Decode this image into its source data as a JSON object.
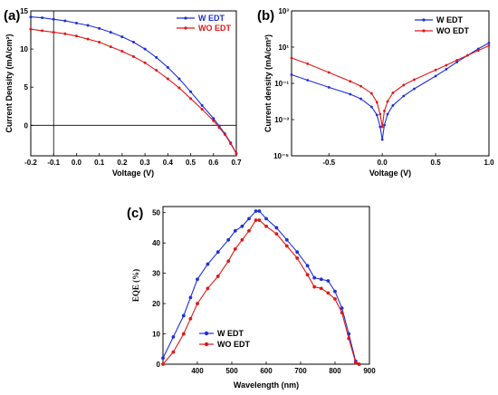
{
  "panel_labels": {
    "a": "(a)",
    "b": "(b)",
    "c": "(c)"
  },
  "colors": {
    "w_edt": "#1f2fd8",
    "wo_edt": "#e01818"
  },
  "chart_data": [
    {
      "id": "a",
      "type": "line",
      "xlabel": "Voltage (V)",
      "ylabel": "Current Density (mA/cm²)",
      "xlim": [
        -0.2,
        0.7
      ],
      "ylim": [
        -4,
        15
      ],
      "xticks": [
        -0.2,
        -0.1,
        0.0,
        0.1,
        0.2,
        0.3,
        0.4,
        0.5,
        0.6,
        0.7
      ],
      "xtick_labels": [
        "-0.2",
        "-0.1",
        "0.0",
        "0.1",
        "0.2",
        "0.3",
        "0.4",
        "0.5",
        "0.6",
        "0.7"
      ],
      "yticks": [
        0,
        5,
        10,
        15
      ],
      "ytick_labels": [
        "0",
        "5",
        "10",
        "15"
      ],
      "refline_x": -0.1,
      "refline_y": 0,
      "legend_position": "top-right",
      "series": [
        {
          "name": "W EDT",
          "color": "#1f2fd8",
          "x": [
            -0.2,
            -0.15,
            -0.1,
            -0.05,
            0.0,
            0.05,
            0.1,
            0.15,
            0.2,
            0.25,
            0.3,
            0.35,
            0.4,
            0.45,
            0.5,
            0.55,
            0.6,
            0.625,
            0.65,
            0.675,
            0.7
          ],
          "y": [
            14.2,
            14.1,
            13.9,
            13.7,
            13.4,
            13.1,
            12.7,
            12.2,
            11.6,
            10.9,
            10.0,
            8.9,
            7.6,
            6.1,
            4.4,
            2.6,
            0.9,
            -0.1,
            -1.1,
            -2.3,
            -3.7
          ]
        },
        {
          "name": "WO EDT",
          "color": "#e01818",
          "x": [
            -0.2,
            -0.15,
            -0.1,
            -0.05,
            0.0,
            0.05,
            0.1,
            0.15,
            0.2,
            0.25,
            0.3,
            0.35,
            0.4,
            0.45,
            0.5,
            0.55,
            0.6,
            0.625,
            0.65,
            0.675,
            0.7
          ],
          "y": [
            12.6,
            12.4,
            12.2,
            12.0,
            11.7,
            11.3,
            10.9,
            10.3,
            9.7,
            9.0,
            8.2,
            7.2,
            6.1,
            4.9,
            3.5,
            2.1,
            0.6,
            -0.3,
            -1.2,
            -2.4,
            -3.7
          ]
        }
      ]
    },
    {
      "id": "b",
      "type": "line",
      "yscale": "log",
      "xlabel": "Voltage (V)",
      "ylabel": "Current density (mA/cm²)",
      "xlim": [
        -0.85,
        1.0
      ],
      "ylim": [
        1e-05,
        1000.0
      ],
      "xticks": [
        -0.5,
        0.0,
        0.5,
        1.0
      ],
      "xtick_labels": [
        "-0.5",
        "0.0",
        "0.5",
        "1.0"
      ],
      "yticks": [
        1e-05,
        0.001,
        0.1,
        10.0,
        1000.0
      ],
      "ytick_labels": [
        "10⁻⁵",
        "10⁻³",
        "10⁻¹",
        "10¹",
        "10³"
      ],
      "legend_position": "top-right",
      "series": [
        {
          "name": "W EDT",
          "color": "#1f2fd8",
          "x": [
            -0.85,
            -0.7,
            -0.5,
            -0.3,
            -0.2,
            -0.1,
            -0.05,
            -0.02,
            0.0,
            0.02,
            0.05,
            0.1,
            0.2,
            0.3,
            0.5,
            0.6,
            0.7,
            0.8,
            0.9,
            1.0
          ],
          "y": [
            0.3,
            0.15,
            0.06,
            0.025,
            0.014,
            0.005,
            0.0018,
            0.0004,
            8e-05,
            0.0005,
            0.002,
            0.006,
            0.02,
            0.05,
            0.25,
            0.6,
            1.5,
            3.5,
            8.0,
            17.0
          ]
        },
        {
          "name": "WO EDT",
          "color": "#e01818",
          "x": [
            -0.85,
            -0.7,
            -0.5,
            -0.3,
            -0.2,
            -0.1,
            -0.05,
            -0.02,
            0.0,
            0.02,
            0.05,
            0.1,
            0.2,
            0.3,
            0.5,
            0.6,
            0.7,
            0.8,
            0.9,
            1.0
          ],
          "y": [
            2.5,
            1.2,
            0.4,
            0.13,
            0.07,
            0.028,
            0.009,
            0.002,
            0.0004,
            0.003,
            0.01,
            0.03,
            0.08,
            0.16,
            0.55,
            1.0,
            1.9,
            3.5,
            6.5,
            12.0
          ]
        }
      ]
    },
    {
      "id": "c",
      "type": "line",
      "xlabel": "Wavelength (nm)",
      "ylabel": "EQE (%)",
      "xlim": [
        300,
        900
      ],
      "ylim": [
        0,
        52
      ],
      "xticks": [
        400,
        500,
        600,
        700,
        800,
        900
      ],
      "xtick_labels": [
        "400",
        "500",
        "600",
        "700",
        "800",
        "900"
      ],
      "yticks": [
        0,
        10,
        20,
        30,
        40,
        50
      ],
      "ytick_labels": [
        "0",
        "10",
        "20",
        "30",
        "40",
        "50"
      ],
      "legend_position": "bottom-left",
      "series": [
        {
          "name": "W EDT",
          "color": "#1f2fd8",
          "x": [
            300,
            330,
            360,
            380,
            400,
            430,
            460,
            490,
            510,
            530,
            550,
            570,
            580,
            600,
            630,
            660,
            690,
            720,
            740,
            760,
            780,
            800,
            820,
            840,
            860,
            870
          ],
          "y": [
            2,
            9,
            16,
            22,
            28,
            33,
            37,
            41,
            44,
            45.5,
            48,
            50.5,
            50.5,
            48,
            45,
            41,
            37,
            32.5,
            28.5,
            28,
            27.5,
            24,
            18.5,
            10,
            1,
            0
          ]
        },
        {
          "name": "WO EDT",
          "color": "#e01818",
          "x": [
            300,
            330,
            360,
            380,
            400,
            430,
            460,
            490,
            510,
            530,
            550,
            570,
            580,
            600,
            630,
            660,
            690,
            720,
            740,
            760,
            780,
            800,
            820,
            840,
            860,
            870
          ],
          "y": [
            0,
            4,
            10,
            15,
            20,
            25,
            29,
            34,
            38,
            41,
            44,
            47.5,
            47.5,
            45.5,
            43,
            39,
            35,
            29.5,
            25.5,
            25,
            23.5,
            21.5,
            17,
            8.5,
            0.5,
            0
          ]
        }
      ]
    }
  ]
}
